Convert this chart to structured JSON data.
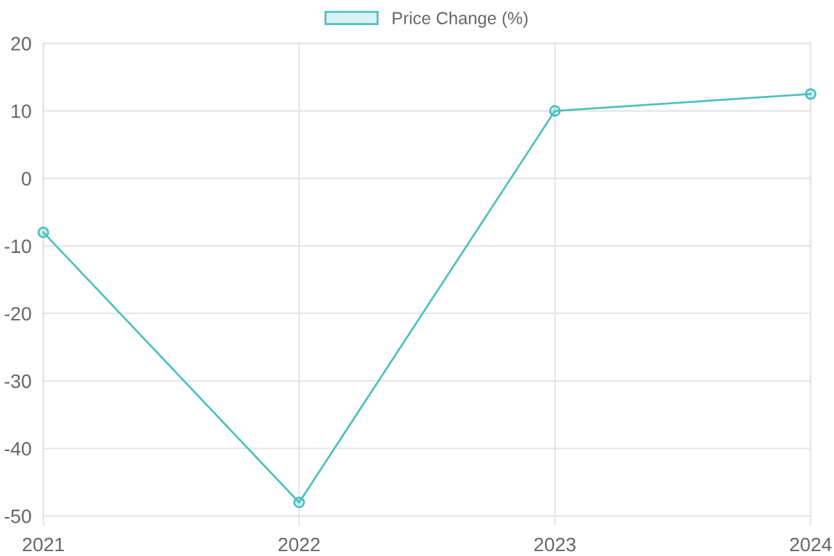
{
  "chart_data": {
    "type": "line",
    "categories": [
      "2021",
      "2022",
      "2023",
      "2024"
    ],
    "series": [
      {
        "name": "Price Change (%)",
        "color": "#4bc0c0",
        "values": [
          -8,
          -48,
          10,
          12.5
        ]
      }
    ],
    "ylim": [
      -50,
      20
    ],
    "yticks": [
      -50,
      -40,
      -30,
      -20,
      -10,
      0,
      10,
      20
    ],
    "grid": true,
    "legend": "top",
    "marker": "circle",
    "line_style": "solid"
  }
}
